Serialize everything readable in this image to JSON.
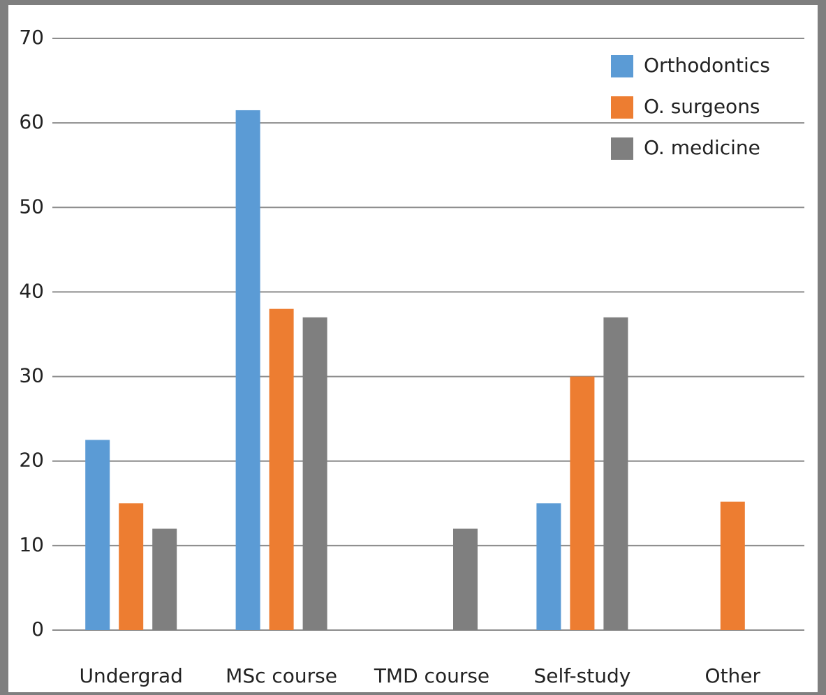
{
  "chart_data": {
    "type": "bar",
    "categories": [
      "Undergrad",
      "MSc course",
      "TMD course",
      "Self-study",
      "Other"
    ],
    "series": [
      {
        "name": "Orthodontics",
        "color": "#5b9bd5",
        "values": [
          22.5,
          61.5,
          0,
          15,
          0
        ]
      },
      {
        "name": "O. surgeons",
        "color": "#ed7d31",
        "values": [
          15,
          38,
          0,
          30,
          15.2
        ]
      },
      {
        "name": "O. medicine",
        "color": "#7f7f7f",
        "values": [
          12,
          37,
          12,
          37,
          0
        ]
      }
    ],
    "ylim": [
      0,
      70
    ],
    "yticks": [
      0,
      10,
      20,
      30,
      40,
      50,
      60,
      70
    ],
    "grid": true,
    "legend": "top-right"
  }
}
